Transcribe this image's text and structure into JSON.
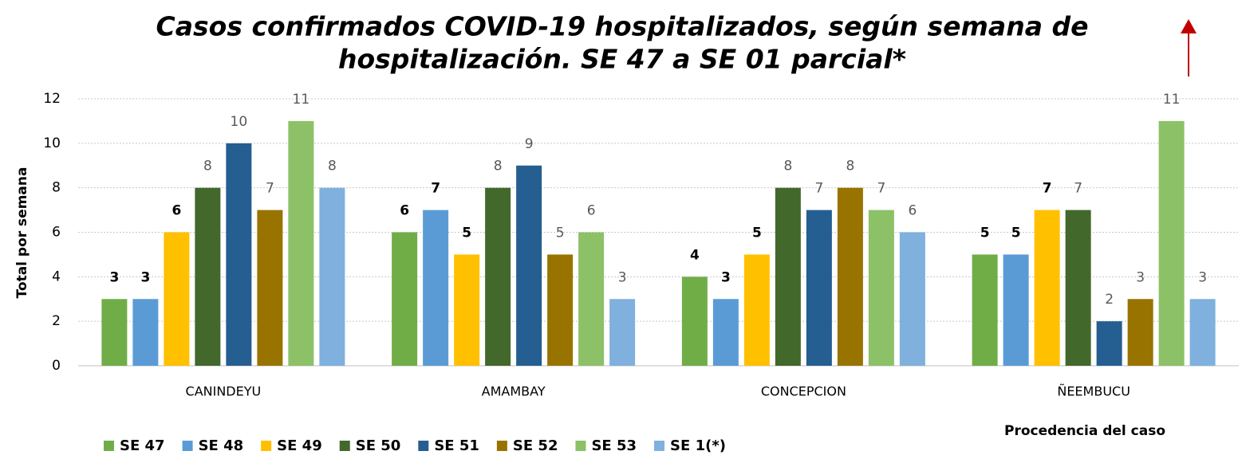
{
  "chart_data": {
    "type": "bar",
    "title": [
      "Casos confirmados COVID-19 hospitalizados, según semana de",
      "hospitalización. SE 47 a SE 01 parcial*"
    ],
    "y_label": "Total por semana",
    "x_label": "Procedencia del caso",
    "categories": [
      "CANINDEYU",
      "AMAMBAY",
      "CONCEPCION",
      "ÑEEMBUCU"
    ],
    "series": [
      {
        "name": "SE 47",
        "color": "#70ad47",
        "values": [
          3,
          6,
          4,
          5
        ]
      },
      {
        "name": "SE 48",
        "color": "#5b9bd5",
        "values": [
          3,
          7,
          3,
          5
        ]
      },
      {
        "name": "SE 49",
        "color": "#ffc000",
        "values": [
          6,
          5,
          5,
          7
        ]
      },
      {
        "name": "SE 50",
        "color": "#43682b",
        "values": [
          8,
          8,
          8,
          7
        ]
      },
      {
        "name": "SE 51",
        "color": "#255e91",
        "values": [
          10,
          9,
          7,
          2
        ]
      },
      {
        "name": "SE 52",
        "color": "#997300",
        "values": [
          7,
          5,
          8,
          3
        ]
      },
      {
        "name": "SE 53",
        "color": "#8cc168",
        "values": [
          11,
          6,
          7,
          11
        ]
      },
      {
        "name": "SE 1(*)",
        "color": "#7fb0de",
        "values": [
          8,
          3,
          6,
          3
        ]
      }
    ],
    "ylim": [
      0,
      12
    ],
    "yticks": [
      0,
      2,
      4,
      6,
      8,
      10,
      12
    ],
    "grid": true,
    "legend": "bottom"
  }
}
